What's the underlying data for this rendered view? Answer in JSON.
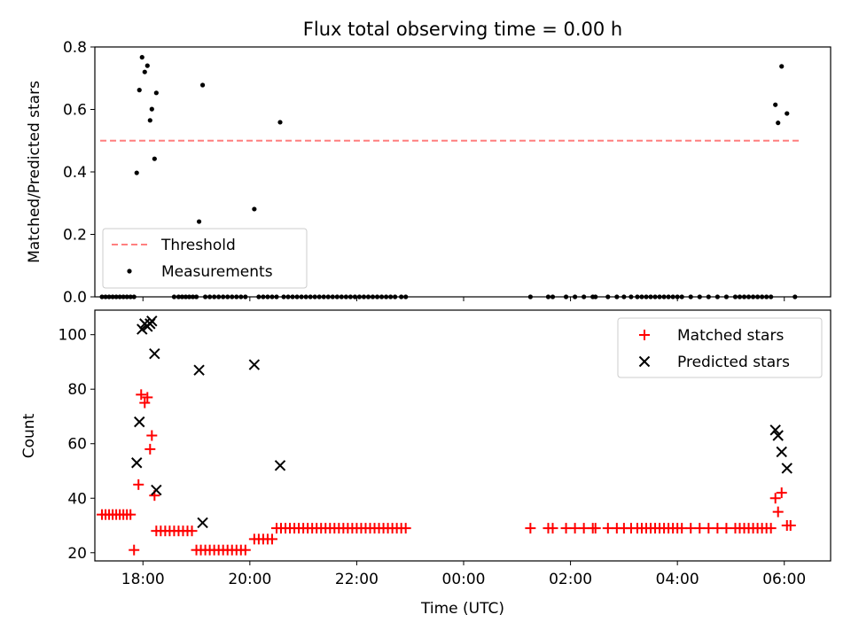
{
  "chart_data": [
    {
      "type": "scatter",
      "title": "Flux total observing time = 0.00 h",
      "xlabel": "",
      "ylabel": "Matched/Predicted stars",
      "xlim": [
        "17:06",
        "06:52"
      ],
      "ylim": [
        0,
        0.8
      ],
      "yticks": [
        "0.0",
        "0.2",
        "0.4",
        "0.6",
        "0.8"
      ],
      "threshold": {
        "name": "Threshold",
        "value": 0.5,
        "x_start": "17:12",
        "x_end": "06:18",
        "color": "#ff7f7f",
        "style": "dashed"
      },
      "series": [
        {
          "name": "Measurements",
          "color": "#000000",
          "marker": "dot",
          "points": [
            [
              "17:53",
              0.397
            ],
            [
              "17:56",
              0.662
            ],
            [
              "17:59",
              0.767
            ],
            [
              "18:02",
              0.72
            ],
            [
              "18:05",
              0.74
            ],
            [
              "18:08",
              0.565
            ],
            [
              "18:10",
              0.601
            ],
            [
              "18:13",
              0.442
            ],
            [
              "18:15",
              0.653
            ],
            [
              "19:03",
              0.241
            ],
            [
              "19:07",
              0.678
            ],
            [
              "20:05",
              0.281
            ],
            [
              "20:34",
              0.559
            ],
            [
              "17:14",
              0
            ],
            [
              "17:18",
              0
            ],
            [
              "17:22",
              0
            ],
            [
              "17:26",
              0
            ],
            [
              "17:30",
              0
            ],
            [
              "17:34",
              0
            ],
            [
              "17:38",
              0
            ],
            [
              "17:42",
              0
            ],
            [
              "17:46",
              0
            ],
            [
              "17:50",
              0
            ],
            [
              "18:35",
              0
            ],
            [
              "18:40",
              0
            ],
            [
              "18:44",
              0
            ],
            [
              "18:48",
              0
            ],
            [
              "18:52",
              0
            ],
            [
              "18:56",
              0
            ],
            [
              "19:00",
              0
            ],
            [
              "19:10",
              0
            ],
            [
              "19:15",
              0
            ],
            [
              "19:20",
              0
            ],
            [
              "19:25",
              0
            ],
            [
              "19:30",
              0
            ],
            [
              "19:35",
              0
            ],
            [
              "19:40",
              0
            ],
            [
              "19:45",
              0
            ],
            [
              "19:50",
              0
            ],
            [
              "19:55",
              0
            ],
            [
              "20:10",
              0
            ],
            [
              "20:15",
              0
            ],
            [
              "20:20",
              0
            ],
            [
              "20:25",
              0
            ],
            [
              "20:30",
              0
            ],
            [
              "20:38",
              0
            ],
            [
              "20:43",
              0
            ],
            [
              "20:48",
              0
            ],
            [
              "20:53",
              0
            ],
            [
              "20:58",
              0
            ],
            [
              "21:03",
              0
            ],
            [
              "21:08",
              0
            ],
            [
              "21:13",
              0
            ],
            [
              "21:18",
              0
            ],
            [
              "21:23",
              0
            ],
            [
              "21:28",
              0
            ],
            [
              "21:33",
              0
            ],
            [
              "21:38",
              0
            ],
            [
              "21:43",
              0
            ],
            [
              "21:48",
              0
            ],
            [
              "21:53",
              0
            ],
            [
              "21:58",
              0
            ],
            [
              "22:03",
              0
            ],
            [
              "22:08",
              0
            ],
            [
              "22:13",
              0
            ],
            [
              "22:18",
              0
            ],
            [
              "22:23",
              0
            ],
            [
              "22:28",
              0
            ],
            [
              "22:33",
              0
            ],
            [
              "22:38",
              0
            ],
            [
              "22:43",
              0
            ],
            [
              "22:50",
              0
            ],
            [
              "22:55",
              0
            ],
            [
              "01:15",
              0
            ],
            [
              "01:35",
              0
            ],
            [
              "01:40",
              0
            ],
            [
              "01:55",
              0
            ],
            [
              "02:05",
              0
            ],
            [
              "02:15",
              0
            ],
            [
              "02:25",
              0
            ],
            [
              "02:28",
              0
            ],
            [
              "02:42",
              0
            ],
            [
              "02:52",
              0
            ],
            [
              "03:00",
              0
            ],
            [
              "03:08",
              0
            ],
            [
              "03:15",
              0
            ],
            [
              "03:20",
              0
            ],
            [
              "03:25",
              0
            ],
            [
              "03:30",
              0
            ],
            [
              "03:35",
              0
            ],
            [
              "03:40",
              0
            ],
            [
              "03:45",
              0
            ],
            [
              "03:50",
              0
            ],
            [
              "03:55",
              0
            ],
            [
              "04:00",
              0
            ],
            [
              "04:05",
              0
            ],
            [
              "04:15",
              0
            ],
            [
              "04:25",
              0
            ],
            [
              "04:35",
              0
            ],
            [
              "04:45",
              0
            ],
            [
              "04:55",
              0
            ],
            [
              "05:05",
              0
            ],
            [
              "05:10",
              0
            ],
            [
              "05:15",
              0
            ],
            [
              "05:20",
              0
            ],
            [
              "05:25",
              0
            ],
            [
              "05:30",
              0
            ],
            [
              "05:35",
              0
            ],
            [
              "05:40",
              0
            ],
            [
              "05:45",
              0
            ],
            [
              "06:12",
              0
            ],
            [
              "05:50",
              0.615
            ],
            [
              "05:53",
              0.557
            ],
            [
              "05:57",
              0.738
            ],
            [
              "06:03",
              0.587
            ]
          ]
        }
      ],
      "legend": {
        "position": "lower-left",
        "entries": [
          "Threshold",
          "Measurements"
        ]
      },
      "grid": false
    },
    {
      "type": "scatter",
      "title": "",
      "xlabel": "Time (UTC)",
      "ylabel": "Count",
      "xlim": [
        "17:06",
        "06:52"
      ],
      "ylim": [
        17,
        109
      ],
      "xticks": [
        "18:00",
        "20:00",
        "22:00",
        "00:00",
        "02:00",
        "04:00",
        "06:00"
      ],
      "yticks": [
        "20",
        "40",
        "60",
        "80",
        "100"
      ],
      "series": [
        {
          "name": "Matched stars",
          "color": "#ff0000",
          "marker": "plus",
          "points": [
            [
              "17:14",
              34
            ],
            [
              "17:18",
              34
            ],
            [
              "17:22",
              34
            ],
            [
              "17:26",
              34
            ],
            [
              "17:30",
              34
            ],
            [
              "17:34",
              34
            ],
            [
              "17:38",
              34
            ],
            [
              "17:42",
              34
            ],
            [
              "17:46",
              34
            ],
            [
              "17:50",
              21
            ],
            [
              "17:55",
              45
            ],
            [
              "17:58",
              78
            ],
            [
              "18:02",
              75
            ],
            [
              "18:05",
              77
            ],
            [
              "18:08",
              58
            ],
            [
              "18:10",
              63
            ],
            [
              "18:13",
              41
            ],
            [
              "18:15",
              28
            ],
            [
              "18:20",
              28
            ],
            [
              "18:25",
              28
            ],
            [
              "18:30",
              28
            ],
            [
              "18:35",
              28
            ],
            [
              "18:40",
              28
            ],
            [
              "18:45",
              28
            ],
            [
              "18:50",
              28
            ],
            [
              "18:55",
              28
            ],
            [
              "19:00",
              21
            ],
            [
              "19:05",
              21
            ],
            [
              "19:10",
              21
            ],
            [
              "19:15",
              21
            ],
            [
              "19:20",
              21
            ],
            [
              "19:25",
              21
            ],
            [
              "19:30",
              21
            ],
            [
              "19:35",
              21
            ],
            [
              "19:40",
              21
            ],
            [
              "19:45",
              21
            ],
            [
              "19:50",
              21
            ],
            [
              "19:55",
              21
            ],
            [
              "20:05",
              25
            ],
            [
              "20:10",
              25
            ],
            [
              "20:15",
              25
            ],
            [
              "20:20",
              25
            ],
            [
              "20:25",
              25
            ],
            [
              "20:30",
              29
            ],
            [
              "20:35",
              29
            ],
            [
              "20:40",
              29
            ],
            [
              "20:45",
              29
            ],
            [
              "20:50",
              29
            ],
            [
              "20:55",
              29
            ],
            [
              "21:00",
              29
            ],
            [
              "21:05",
              29
            ],
            [
              "21:10",
              29
            ],
            [
              "21:15",
              29
            ],
            [
              "21:20",
              29
            ],
            [
              "21:25",
              29
            ],
            [
              "21:30",
              29
            ],
            [
              "21:35",
              29
            ],
            [
              "21:40",
              29
            ],
            [
              "21:45",
              29
            ],
            [
              "21:50",
              29
            ],
            [
              "21:55",
              29
            ],
            [
              "22:00",
              29
            ],
            [
              "22:05",
              29
            ],
            [
              "22:10",
              29
            ],
            [
              "22:15",
              29
            ],
            [
              "22:20",
              29
            ],
            [
              "22:25",
              29
            ],
            [
              "22:30",
              29
            ],
            [
              "22:35",
              29
            ],
            [
              "22:40",
              29
            ],
            [
              "22:45",
              29
            ],
            [
              "22:50",
              29
            ],
            [
              "22:55",
              29
            ],
            [
              "01:15",
              29
            ],
            [
              "01:35",
              29
            ],
            [
              "01:40",
              29
            ],
            [
              "01:55",
              29
            ],
            [
              "02:05",
              29
            ],
            [
              "02:15",
              29
            ],
            [
              "02:25",
              29
            ],
            [
              "02:28",
              29
            ],
            [
              "02:42",
              29
            ],
            [
              "02:52",
              29
            ],
            [
              "03:00",
              29
            ],
            [
              "03:08",
              29
            ],
            [
              "03:15",
              29
            ],
            [
              "03:20",
              29
            ],
            [
              "03:25",
              29
            ],
            [
              "03:30",
              29
            ],
            [
              "03:35",
              29
            ],
            [
              "03:40",
              29
            ],
            [
              "03:45",
              29
            ],
            [
              "03:50",
              29
            ],
            [
              "03:55",
              29
            ],
            [
              "04:00",
              29
            ],
            [
              "04:05",
              29
            ],
            [
              "04:15",
              29
            ],
            [
              "04:25",
              29
            ],
            [
              "04:35",
              29
            ],
            [
              "04:45",
              29
            ],
            [
              "04:55",
              29
            ],
            [
              "05:05",
              29
            ],
            [
              "05:10",
              29
            ],
            [
              "05:15",
              29
            ],
            [
              "05:20",
              29
            ],
            [
              "05:25",
              29
            ],
            [
              "05:30",
              29
            ],
            [
              "05:35",
              29
            ],
            [
              "05:40",
              29
            ],
            [
              "05:45",
              29
            ],
            [
              "05:50",
              40
            ],
            [
              "05:53",
              35
            ],
            [
              "05:57",
              42
            ],
            [
              "06:03",
              30
            ],
            [
              "06:07",
              30
            ]
          ]
        },
        {
          "name": "Predicted stars",
          "color": "#000000",
          "marker": "x",
          "points": [
            [
              "17:53",
              53
            ],
            [
              "17:56",
              68
            ],
            [
              "17:59",
              102
            ],
            [
              "18:02",
              104
            ],
            [
              "18:05",
              103
            ],
            [
              "18:08",
              104
            ],
            [
              "18:10",
              105
            ],
            [
              "18:13",
              93
            ],
            [
              "18:15",
              43
            ],
            [
              "19:03",
              87
            ],
            [
              "19:07",
              31
            ],
            [
              "20:05",
              89
            ],
            [
              "20:34",
              52
            ],
            [
              "05:50",
              65
            ],
            [
              "05:53",
              63
            ],
            [
              "05:57",
              57
            ],
            [
              "06:03",
              51
            ]
          ]
        }
      ],
      "legend": {
        "position": "upper-right",
        "entries": [
          "Matched stars",
          "Predicted stars"
        ]
      },
      "grid": false
    }
  ]
}
